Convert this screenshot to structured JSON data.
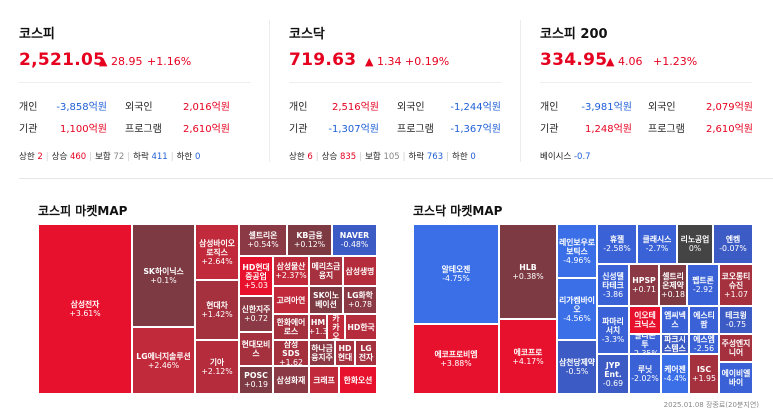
{
  "cards": [
    {
      "name": "코스피",
      "value": "2,521.05",
      "change": "▲ 28.95",
      "pct": "+1.16%",
      "rows": [
        {
          "l1": "개인",
          "v1": "-3,858억원",
          "c1": "blue",
          "l2": "외국인",
          "v2": "2,016억원",
          "c2": "red"
        },
        {
          "l1": "기관",
          "v1": "1,100억원",
          "c1": "red",
          "l2": "프로그램",
          "v2": "2,610억원",
          "c2": "red"
        }
      ],
      "counts": [
        {
          "label": "상한",
          "value": "2",
          "color": "red"
        },
        {
          "label": "상승",
          "value": "460",
          "color": "red"
        },
        {
          "label": "보합",
          "value": "72",
          "color": "gray"
        },
        {
          "label": "하락",
          "value": "411",
          "color": "blue"
        },
        {
          "label": "하한",
          "value": "0",
          "color": "blue"
        }
      ]
    },
    {
      "name": "코스닥",
      "value": "719.63",
      "change": "▲ 1.34",
      "pct": "+0.19%",
      "rows": [
        {
          "l1": "개인",
          "v1": "2,516억원",
          "c1": "red",
          "l2": "외국인",
          "v2": "-1,244억원",
          "c2": "blue"
        },
        {
          "l1": "기관",
          "v1": "-1,307억원",
          "c1": "blue",
          "l2": "프로그램",
          "v2": "-1,367억원",
          "c2": "blue"
        }
      ],
      "counts": [
        {
          "label": "상한",
          "value": "6",
          "color": "red"
        },
        {
          "label": "상승",
          "value": "835",
          "color": "red"
        },
        {
          "label": "보합",
          "value": "105",
          "color": "gray"
        },
        {
          "label": "하락",
          "value": "763",
          "color": "blue"
        },
        {
          "label": "하한",
          "value": "0",
          "color": "blue"
        }
      ]
    },
    {
      "name": "코스피 200",
      "value": "334.95",
      "change": "▲ 4.06",
      "pct": "+1.23%",
      "rows": [
        {
          "l1": "개인",
          "v1": "-3,981억원",
          "c1": "blue",
          "l2": "외국인",
          "v2": "2,079억원",
          "c2": "red"
        },
        {
          "l1": "기관",
          "v1": "1,248억원",
          "c1": "red",
          "l2": "프로그램",
          "v2": "2,610억원",
          "c2": "red"
        }
      ],
      "basis": {
        "label": "베이시스",
        "value": "-0.7"
      }
    }
  ],
  "maps": [
    {
      "title": "코스피 마켓MAP",
      "tiles": [
        {
          "n": "삼성전자",
          "v": "+3.61%",
          "c": "#e8112d",
          "s": "l"
        },
        {
          "n": "SK하이닉스",
          "v": "+0.1%",
          "c": "#7d3a43",
          "s": "l"
        },
        {
          "n": "LG에너지솔루션",
          "v": "+2.46%",
          "c": "#c02a3b",
          "s": "l"
        },
        {
          "n": "삼성바이오로직스",
          "v": "+2.64%",
          "c": "#c02a3b",
          "s": "m"
        },
        {
          "n": "현대차",
          "v": "+1.42%",
          "c": "#a5313f",
          "s": "m"
        },
        {
          "n": "기아",
          "v": "+2.12%",
          "c": "#b52c3c",
          "s": "m"
        },
        {
          "n": "셀트리온",
          "v": "+0.54%",
          "c": "#8b3a45",
          "s": "s"
        },
        {
          "n": "KB금융",
          "v": "+0.12%",
          "c": "#7d3a43",
          "s": "s"
        },
        {
          "n": "NAVER",
          "v": "-0.48%",
          "c": "#3d5bc4",
          "s": "s"
        },
        {
          "n": "HD현대중공업",
          "v": "+5.03",
          "c": "#e8112d",
          "s": "s"
        },
        {
          "n": "삼성물산",
          "v": "+2.37%",
          "c": "#c02a3b",
          "s": "s"
        },
        {
          "n": "메리츠금융지",
          "v": "",
          "c": "#a5313f",
          "s": "s"
        },
        {
          "n": "삼성생명",
          "v": "",
          "c": "#b52c3c",
          "s": "s"
        },
        {
          "n": "신한지주",
          "v": "+0.72",
          "c": "#8b3a45",
          "s": "s"
        },
        {
          "n": "고려아연",
          "v": "",
          "c": "#c02a3b",
          "s": "s"
        },
        {
          "n": "SK이노베이션",
          "v": "",
          "c": "#7d3a43",
          "s": "s"
        },
        {
          "n": "LG화학",
          "v": "+0.78",
          "c": "#8b3a45",
          "s": "s"
        },
        {
          "n": "한화에어로스",
          "v": "",
          "c": "#a5313f",
          "s": "s"
        },
        {
          "n": "HM",
          "v": "+1.3",
          "c": "#a5313f",
          "s": "s"
        },
        {
          "n": "카카오",
          "v": "",
          "c": "#c02a3b",
          "s": "s"
        },
        {
          "n": "HD한국",
          "v": "",
          "c": "#b52c3c",
          "s": "s"
        },
        {
          "n": "현대모비스",
          "v": "",
          "c": "#a5313f",
          "s": "s"
        },
        {
          "n": "삼성SDS",
          "v": "+1.62",
          "c": "#a5313f",
          "s": "s"
        },
        {
          "n": "하나금융지주",
          "v": "",
          "c": "#8b3a45",
          "s": "s"
        },
        {
          "n": "HD현대",
          "v": "",
          "c": "#a5313f",
          "s": "s"
        },
        {
          "n": "LG전자",
          "v": "",
          "c": "#a5313f",
          "s": "s"
        },
        {
          "n": "POSC",
          "v": "+0.19",
          "c": "#7d3a43",
          "s": "s"
        },
        {
          "n": "삼성화재",
          "v": "",
          "c": "#8b3a45",
          "s": "s"
        },
        {
          "n": "크래프",
          "v": "",
          "c": "#c02a3b",
          "s": "s"
        },
        {
          "n": "한화오션",
          "v": "",
          "c": "#e8112d",
          "s": "s"
        }
      ]
    },
    {
      "title": "코스닥 마켓MAP",
      "tiles": [
        {
          "n": "알테오젠",
          "v": "-4.75%",
          "c": "#3a6fe8",
          "s": "l"
        },
        {
          "n": "에코프로비엠",
          "v": "+3.88%",
          "c": "#e8112d",
          "s": "l"
        },
        {
          "n": "HLB",
          "v": "+0.38%",
          "c": "#7d3a43",
          "s": "l"
        },
        {
          "n": "에코프로",
          "v": "+4.17%",
          "c": "#e8112d",
          "s": "l"
        },
        {
          "n": "레인보우로보틱스",
          "v": "-4.96%",
          "c": "#3a6fe8",
          "s": "m"
        },
        {
          "n": "리가켐바이오",
          "v": "-4.56%",
          "c": "#3a6fe8",
          "s": "m"
        },
        {
          "n": "삼천당제약",
          "v": "-0.5%",
          "c": "#3d5bc4",
          "s": "m"
        },
        {
          "n": "휴젤",
          "v": "-2.58%",
          "c": "#3a62d6",
          "s": "s"
        },
        {
          "n": "클래시스",
          "v": "-2.7%",
          "c": "#3a62d6",
          "s": "s"
        },
        {
          "n": "리노공업",
          "v": "0%",
          "c": "#444",
          "s": "s"
        },
        {
          "n": "엔켐",
          "v": "-0.07%",
          "c": "#3d5bc4",
          "s": "s"
        },
        {
          "n": "신성델타테크",
          "v": "-3.86",
          "c": "#3a62d6",
          "s": "s"
        },
        {
          "n": "HPSP",
          "v": "+0.71",
          "c": "#8b3a45",
          "s": "s"
        },
        {
          "n": "셀트리온제약",
          "v": "+0.18",
          "c": "#7d3a43",
          "s": "s"
        },
        {
          "n": "펩트론",
          "v": "-2.92",
          "c": "#3a62d6",
          "s": "s"
        },
        {
          "n": "코오롱티슈진",
          "v": "+1.07",
          "c": "#a5313f",
          "s": "s"
        },
        {
          "n": "파마리서치",
          "v": "-3.3%",
          "c": "#3a62d6",
          "s": "s"
        },
        {
          "n": "이오테크닉스",
          "v": "",
          "c": "#e8112d",
          "s": "s"
        },
        {
          "n": "엠씨넥스",
          "v": "",
          "c": "#3a62d6",
          "s": "s"
        },
        {
          "n": "에스티팜",
          "v": "",
          "c": "#3a62d6",
          "s": "s"
        },
        {
          "n": "테크윙",
          "v": "-0.75",
          "c": "#3d5bc4",
          "s": "s"
        },
        {
          "n": "실리콘투",
          "v": "-2.35%",
          "c": "#3a62d6",
          "s": "s"
        },
        {
          "n": "파크시스템스",
          "v": "",
          "c": "#3d5bc4",
          "s": "s"
        },
        {
          "n": "에스엠",
          "v": "-2.56",
          "c": "#3a62d6",
          "s": "s"
        },
        {
          "n": "주성엔지니어",
          "v": "",
          "c": "#a5313f",
          "s": "s"
        },
        {
          "n": "JYP Ent.",
          "v": "-0.69",
          "c": "#3d5bc4",
          "s": "s"
        },
        {
          "n": "루닛",
          "v": "-2.02%",
          "c": "#3a62d6",
          "s": "s"
        },
        {
          "n": "케어젠",
          "v": "-4.4%",
          "c": "#3a6fe8",
          "s": "s"
        },
        {
          "n": "ISC",
          "v": "+1.95",
          "c": "#a5313f",
          "s": "s"
        },
        {
          "n": "에이비엘바이",
          "v": "",
          "c": "#3a62d6",
          "s": "s"
        }
      ]
    }
  ],
  "footer": "2025.01.08 장종료(20분지연)"
}
